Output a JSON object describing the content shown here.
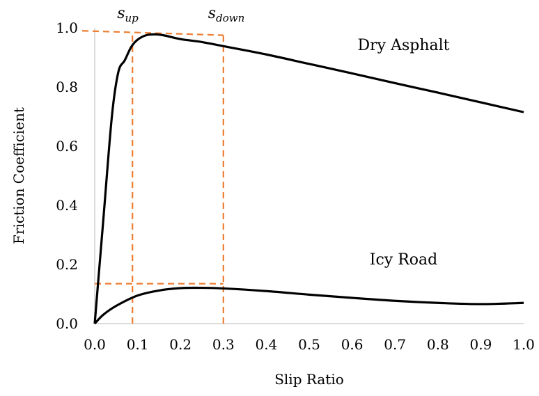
{
  "chart_data": {
    "type": "line",
    "xlabel": "Slip Ratio",
    "ylabel": "Friction Coefficient",
    "xlim": [
      0,
      1
    ],
    "ylim": [
      0,
      1
    ],
    "x_ticks": [
      "0.0",
      "0.1",
      "0.2",
      "0.3",
      "0.4",
      "0.5",
      "0.6",
      "0.7",
      "0.8",
      "0.9",
      "1.0"
    ],
    "y_ticks": [
      "0.0",
      "0.2",
      "0.4",
      "0.6",
      "0.8",
      "1.0"
    ],
    "grid": false,
    "line_color": "#000000",
    "reference_line_color": "#ED7D31",
    "series": [
      {
        "name": "Dry Asphalt",
        "x": [
          0,
          0.02,
          0.04,
          0.055,
          0.07,
          0.085,
          0.1,
          0.12,
          0.14,
          0.16,
          0.2,
          0.25,
          0.3,
          0.4,
          0.5,
          0.6,
          0.7,
          0.8,
          0.9,
          1.0
        ],
        "y": [
          0,
          0.35,
          0.7,
          0.85,
          0.89,
          0.935,
          0.96,
          0.975,
          0.978,
          0.975,
          0.962,
          0.952,
          0.938,
          0.91,
          0.878,
          0.846,
          0.813,
          0.781,
          0.748,
          0.715
        ]
      },
      {
        "name": "Icy Road",
        "x": [
          0,
          0.02,
          0.05,
          0.1,
          0.15,
          0.2,
          0.25,
          0.3,
          0.4,
          0.5,
          0.6,
          0.7,
          0.8,
          0.9,
          1.0
        ],
        "y": [
          0,
          0.03,
          0.06,
          0.095,
          0.112,
          0.12,
          0.121,
          0.119,
          0.11,
          0.098,
          0.087,
          0.077,
          0.07,
          0.066,
          0.07
        ]
      }
    ],
    "reference_lines": [
      {
        "label": "s",
        "subscript": "up",
        "x": 0.088,
        "y": 0.935
      },
      {
        "label": "s",
        "subscript": "down",
        "x": 0.3,
        "y": 0.975
      },
      {
        "x": 0.3,
        "y": 0.135
      }
    ],
    "annotations": [
      {
        "text": "Dry Asphalt",
        "x": 0.72,
        "y": 0.925
      },
      {
        "text": "Icy Road",
        "x": 0.72,
        "y": 0.2
      }
    ]
  }
}
